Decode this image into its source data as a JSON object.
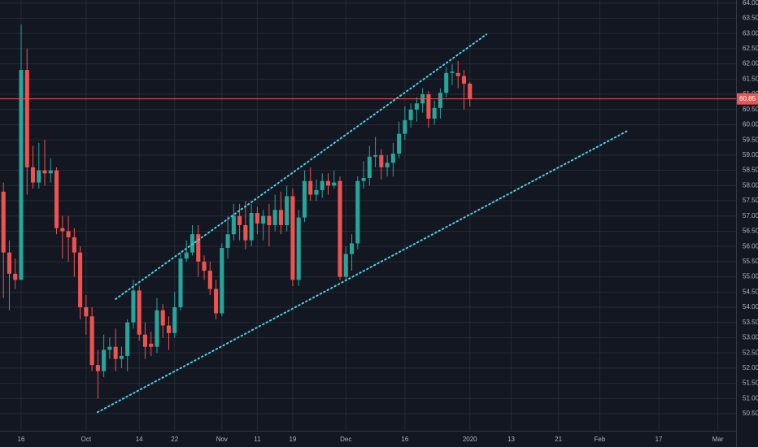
{
  "chart_data": {
    "type": "candlestick",
    "x": [
      -3,
      -2,
      -1,
      0,
      1,
      2,
      3,
      4,
      5,
      6,
      7,
      8,
      9,
      10,
      11,
      12,
      13,
      14,
      15,
      16,
      17,
      18,
      19,
      20,
      21,
      22,
      23,
      24,
      25,
      26,
      27,
      28,
      29,
      30,
      31,
      32,
      33,
      34,
      35,
      36,
      37,
      38,
      39,
      40,
      41,
      42,
      43,
      44,
      45,
      46,
      47,
      48,
      49,
      50,
      51,
      52,
      53,
      54,
      55,
      56,
      57,
      58,
      59,
      60,
      61,
      62,
      63,
      64,
      65,
      66,
      67,
      68,
      69,
      70,
      71,
      72,
      73,
      74,
      75,
      76
    ],
    "open": [
      57.8,
      55.8,
      55.1,
      54.9,
      61.8,
      58.6,
      58.1,
      58.5,
      58.4,
      58.5,
      56.6,
      56.5,
      56.3,
      55.8,
      54.0,
      53.7,
      52.1,
      51.9,
      52.6,
      52.7,
      52.3,
      52.4,
      53.5,
      54.55,
      53.1,
      52.8,
      52.7,
      53.9,
      53.4,
      53.15,
      54.0,
      55.6,
      55.8,
      56.4,
      55.5,
      55.2,
      54.6,
      53.8,
      55.95,
      56.4,
      57.0,
      56.7,
      56.2,
      57.1,
      56.75,
      57.0,
      56.7,
      57.2,
      56.7,
      57.65,
      54.9,
      56.95,
      58.15,
      57.7,
      57.85,
      58.15,
      58.0,
      58.15,
      55.0,
      55.75,
      56.1,
      58.15,
      58.25,
      58.95,
      59.0,
      58.6,
      58.75,
      59.05,
      59.7,
      60.15,
      60.5,
      60.7,
      61.0,
      60.2,
      60.55,
      61.05,
      61.7,
      61.7,
      61.6,
      61.35
    ],
    "high": [
      58.1,
      56.2,
      55.6,
      63.3,
      62.5,
      59.3,
      59.4,
      59.5,
      58.9,
      58.6,
      57.0,
      57.0,
      56.6,
      56.0,
      54.4,
      54.0,
      52.6,
      53.1,
      53.0,
      53.3,
      52.7,
      53.6,
      54.9,
      54.7,
      53.5,
      53.2,
      54.3,
      54.1,
      53.7,
      54.5,
      55.8,
      56.2,
      56.7,
      56.7,
      55.7,
      55.5,
      54.9,
      56.1,
      57.0,
      57.4,
      57.4,
      57.5,
      57.4,
      57.3,
      57.2,
      57.4,
      57.7,
      57.8,
      58.0,
      57.9,
      57.2,
      58.5,
      58.6,
      58.2,
      58.4,
      58.4,
      58.5,
      58.3,
      56.0,
      56.4,
      58.3,
      58.8,
      59.3,
      59.6,
      59.2,
      59.0,
      59.4,
      60.1,
      60.6,
      60.7,
      60.9,
      61.2,
      61.1,
      60.8,
      61.2,
      61.9,
      62.0,
      62.1,
      61.8,
      61.4
    ],
    "low": [
      54.3,
      53.9,
      54.6,
      54.9,
      57.7,
      57.9,
      57.9,
      58.0,
      58.1,
      56.4,
      55.6,
      55.5,
      55.0,
      53.6,
      53.1,
      51.9,
      51.0,
      51.7,
      52.3,
      51.9,
      52.0,
      51.9,
      53.3,
      52.9,
      52.3,
      52.4,
      52.5,
      53.0,
      52.6,
      53.0,
      53.9,
      55.5,
      55.7,
      55.0,
      54.9,
      54.4,
      53.6,
      53.7,
      55.6,
      56.2,
      56.2,
      55.9,
      56.0,
      56.4,
      56.2,
      56.0,
      56.5,
      56.4,
      56.5,
      54.7,
      54.7,
      56.8,
      57.5,
      57.5,
      57.6,
      57.7,
      57.9,
      54.9,
      54.9,
      55.2,
      55.9,
      57.9,
      58.0,
      58.6,
      58.2,
      58.3,
      58.3,
      58.9,
      59.5,
      59.9,
      60.1,
      60.4,
      59.9,
      60.0,
      60.2,
      60.9,
      61.3,
      61.2,
      60.5,
      60.6
    ],
    "close": [
      55.8,
      55.1,
      54.9,
      61.8,
      58.6,
      58.1,
      58.5,
      58.4,
      58.5,
      56.6,
      56.5,
      56.3,
      55.8,
      54.0,
      53.7,
      52.1,
      51.9,
      52.6,
      52.7,
      52.3,
      52.4,
      53.5,
      54.55,
      53.1,
      52.7,
      52.7,
      53.9,
      53.4,
      53.15,
      54.0,
      55.6,
      55.8,
      56.4,
      55.5,
      55.2,
      54.6,
      53.8,
      55.95,
      56.4,
      57.0,
      56.7,
      56.2,
      57.1,
      56.75,
      57.0,
      56.7,
      57.2,
      56.7,
      57.65,
      54.9,
      56.95,
      58.15,
      57.7,
      57.85,
      58.15,
      58.0,
      58.1,
      55.0,
      55.75,
      56.1,
      58.15,
      58.25,
      58.95,
      59.0,
      58.6,
      58.75,
      59.05,
      59.7,
      60.15,
      60.5,
      60.7,
      61.0,
      60.2,
      60.55,
      61.05,
      61.7,
      61.75,
      61.6,
      61.35,
      60.85
    ],
    "up_color": "#26a69a",
    "down_color": "#ef5350",
    "last_price": 60.85,
    "last_price_color": "#ef5350",
    "trendlines": [
      {
        "color": "#4dd0e1",
        "x": [
          16.0,
          78.8
        ],
        "y": [
          54.27,
          62.97
        ]
      },
      {
        "color": "#4dd0e1",
        "x": [
          12.95,
          102.9
        ],
        "y": [
          50.55,
          59.82
        ]
      }
    ],
    "xlim": [
      -3.58,
      121.08
    ],
    "xticks": [
      {
        "value": 0,
        "label": "16"
      },
      {
        "value": 11,
        "label": "Oct"
      },
      {
        "value": 20,
        "label": "14"
      },
      {
        "value": 26,
        "label": "22"
      },
      {
        "value": 34,
        "label": "Nov"
      },
      {
        "value": 40,
        "label": "11"
      },
      {
        "value": 46,
        "label": "19"
      },
      {
        "value": 55,
        "label": "Dec"
      },
      {
        "value": 65,
        "label": "16"
      },
      {
        "value": 76,
        "label": "2020"
      },
      {
        "value": 83,
        "label": "13"
      },
      {
        "value": 91,
        "label": "21"
      },
      {
        "value": 98,
        "label": "Feb"
      },
      {
        "value": 108,
        "label": "17"
      },
      {
        "value": 118,
        "label": "Mar"
      }
    ],
    "ylim": [
      49.94,
      64.1
    ],
    "yticks": [
      {
        "value": 50.5,
        "label": "50.50"
      },
      {
        "value": 51,
        "label": "51.00"
      },
      {
        "value": 51.5,
        "label": "51.50"
      },
      {
        "value": 52,
        "label": "52.00"
      },
      {
        "value": 52.5,
        "label": "52.50"
      },
      {
        "value": 53,
        "label": "53.00"
      },
      {
        "value": 53.5,
        "label": "53.50"
      },
      {
        "value": 54,
        "label": "54.00"
      },
      {
        "value": 54.5,
        "label": "54.50"
      },
      {
        "value": 55,
        "label": "55.00"
      },
      {
        "value": 55.5,
        "label": "55.50"
      },
      {
        "value": 56,
        "label": "56.00"
      },
      {
        "value": 56.5,
        "label": "56.50"
      },
      {
        "value": 57,
        "label": "57.00"
      },
      {
        "value": 57.5,
        "label": "57.50"
      },
      {
        "value": 58,
        "label": "58.00"
      },
      {
        "value": 58.5,
        "label": "58.50"
      },
      {
        "value": 59,
        "label": "59.00"
      },
      {
        "value": 59.5,
        "label": "59.50"
      },
      {
        "value": 60,
        "label": "60.00"
      },
      {
        "value": 60.5,
        "label": "60.50"
      },
      {
        "value": 61,
        "label": "61.00"
      },
      {
        "value": 61.5,
        "label": "61.50"
      },
      {
        "value": 62,
        "label": "62.00"
      },
      {
        "value": 62.5,
        "label": "62.50"
      },
      {
        "value": 63,
        "label": "63.00"
      },
      {
        "value": 63.5,
        "label": "63.50"
      },
      {
        "value": 64,
        "label": "64.00"
      }
    ],
    "grid": true
  }
}
